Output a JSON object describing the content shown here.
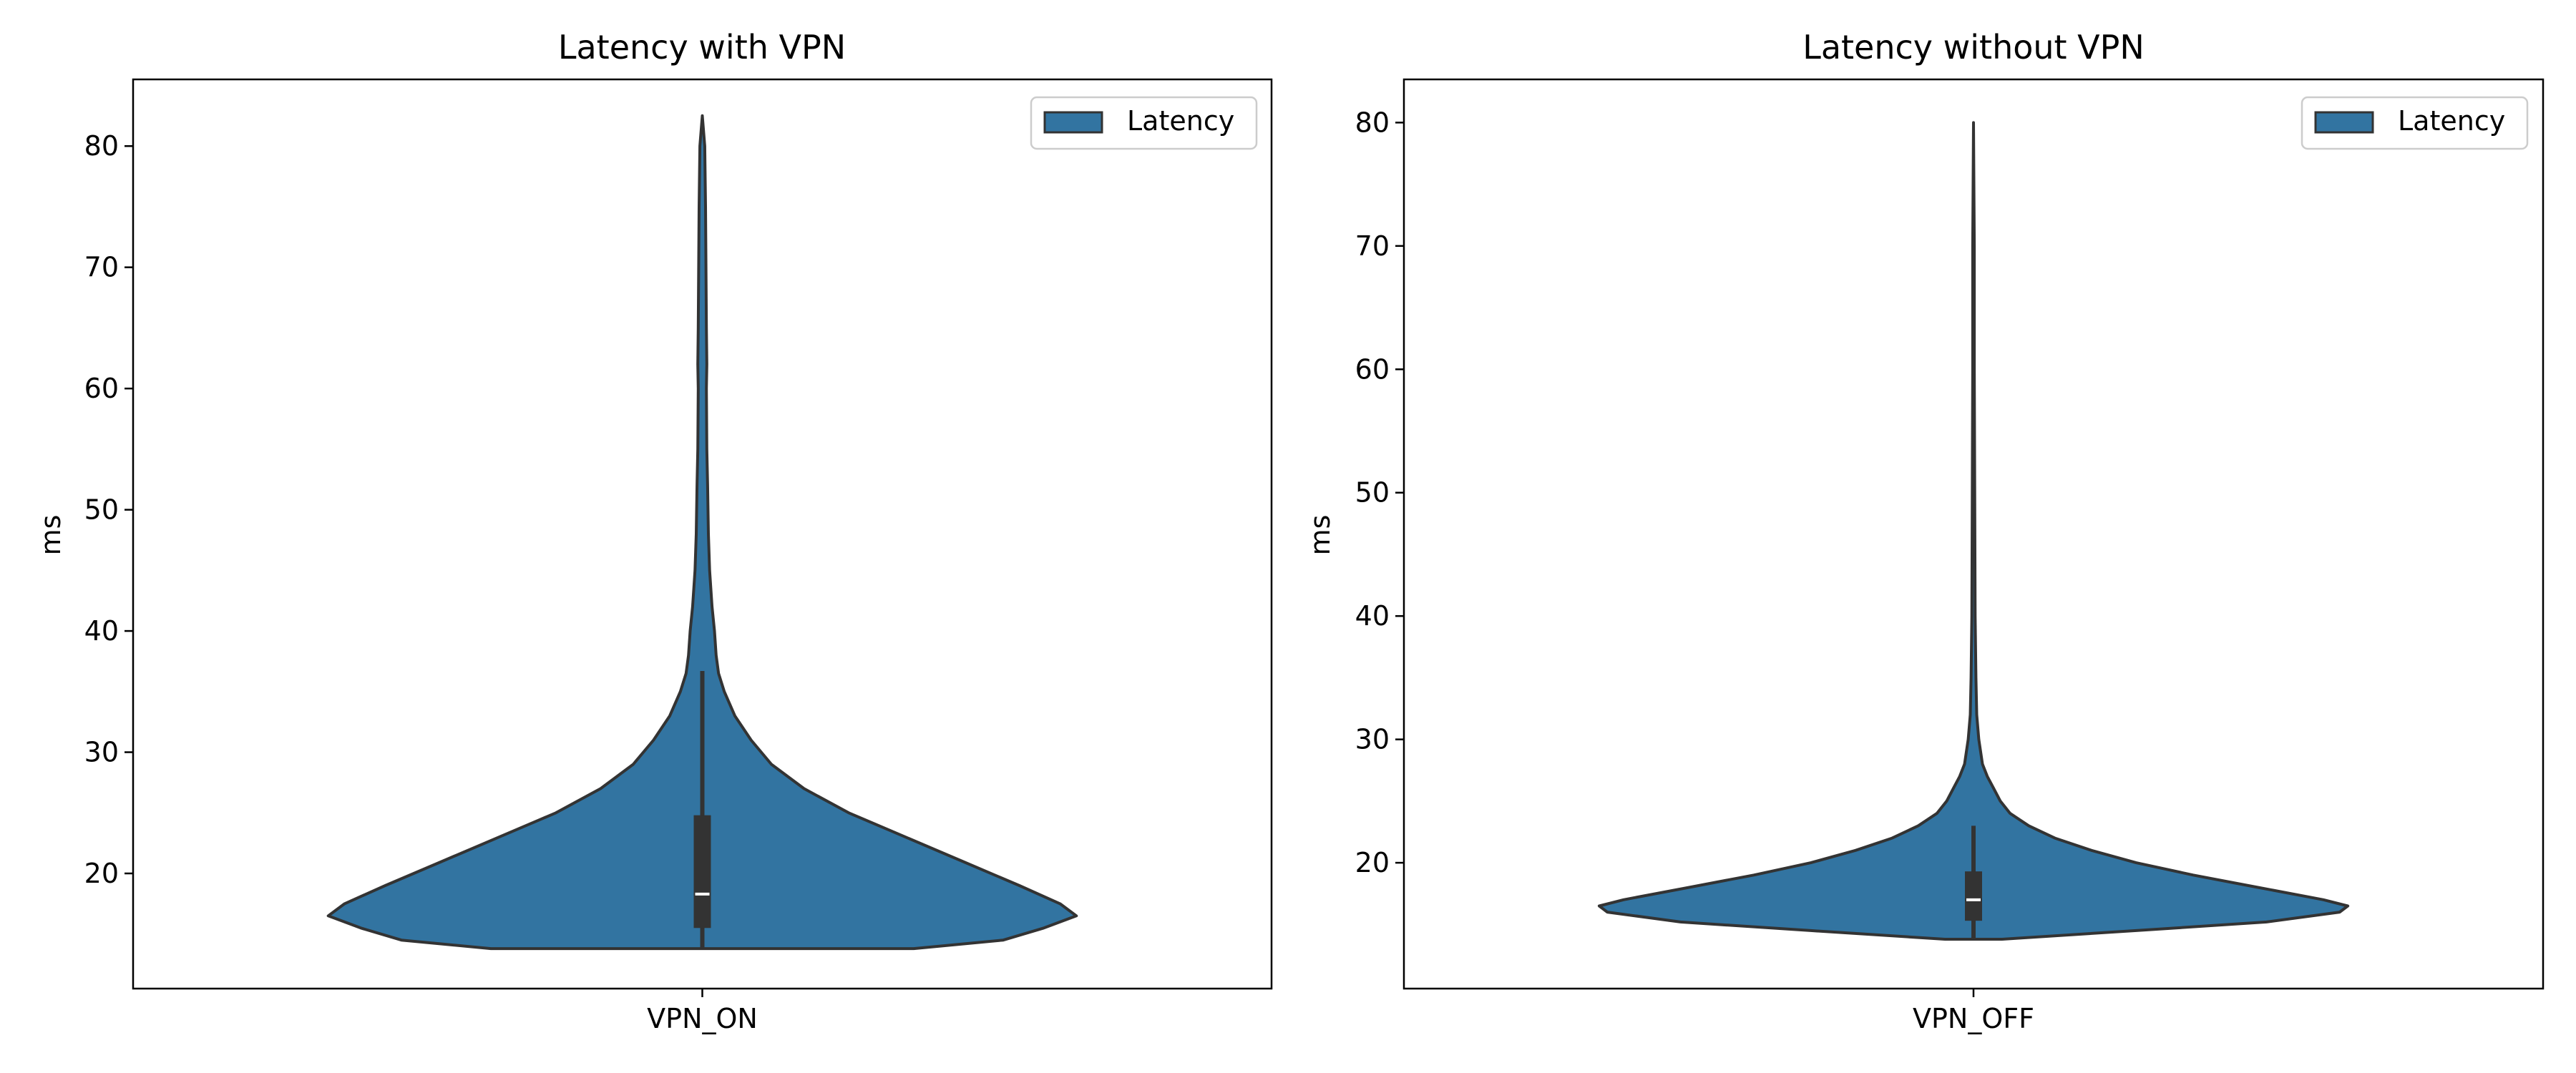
{
  "chart_data": [
    {
      "type": "violin",
      "title": "Latency with VPN",
      "xlabel": "",
      "ylabel": "ms",
      "categories": [
        "VPN_ON"
      ],
      "yticks": [
        20,
        30,
        40,
        50,
        60,
        70,
        80
      ],
      "ylim": [
        10.5,
        85.5
      ],
      "grid": false,
      "legend": {
        "position": "top-right",
        "entries": [
          "Latency"
        ]
      },
      "color": "#3274a1",
      "density": {
        "y": [
          13.8,
          14.5,
          15.5,
          16.5,
          17.5,
          19,
          21,
          23,
          25,
          27,
          29,
          31,
          33,
          35,
          36.5,
          38,
          40,
          42,
          45,
          48,
          52,
          55,
          60,
          62,
          65,
          70,
          75,
          80,
          82.5
        ],
        "half_width": [
          0.26,
          0.37,
          0.42,
          0.46,
          0.44,
          0.39,
          0.32,
          0.25,
          0.18,
          0.125,
          0.085,
          0.06,
          0.04,
          0.027,
          0.02,
          0.017,
          0.015,
          0.012,
          0.009,
          0.0075,
          0.0065,
          0.0055,
          0.005,
          0.0055,
          0.005,
          0.0045,
          0.004,
          0.003,
          0.0
        ]
      },
      "box": {
        "whisker_low": 13.8,
        "q1": 15.5,
        "median": 18.3,
        "q3": 24.8,
        "whisker_high": 36.7
      }
    },
    {
      "type": "violin",
      "title": "Latency without VPN",
      "xlabel": "",
      "ylabel": "ms",
      "categories": [
        "VPN_OFF"
      ],
      "yticks": [
        20,
        30,
        40,
        50,
        60,
        70,
        80
      ],
      "ylim": [
        9.8,
        83.5
      ],
      "grid": false,
      "legend": {
        "position": "top-right",
        "entries": [
          "Latency"
        ]
      },
      "color": "#3274a1",
      "density": {
        "y": [
          13.8,
          14.5,
          15.2,
          16,
          16.5,
          17,
          18,
          19,
          20,
          21,
          22,
          23,
          24,
          25,
          26,
          27,
          28,
          30,
          32,
          35,
          40,
          50,
          60,
          70,
          80
        ],
        "half_width": [
          0.035,
          0.2,
          0.36,
          0.45,
          0.46,
          0.43,
          0.35,
          0.27,
          0.2,
          0.145,
          0.1,
          0.068,
          0.045,
          0.033,
          0.025,
          0.017,
          0.011,
          0.0065,
          0.004,
          0.003,
          0.002,
          0.0015,
          0.001,
          0.001,
          0.0
        ]
      },
      "box": {
        "whisker_low": 13.8,
        "q1": 15.3,
        "median": 17.0,
        "q3": 19.3,
        "whisker_high": 23.0
      }
    }
  ]
}
